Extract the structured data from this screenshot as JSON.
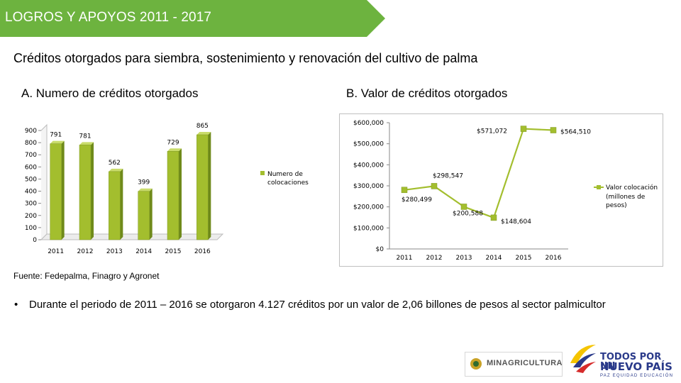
{
  "header": {
    "title": "LOGROS Y APOYOS 2011 - 2017",
    "color": "#6db33f"
  },
  "subtitle": "Créditos otorgados para siembra, sostenimiento y renovación del cultivo de palma",
  "source": "Fuente: Fedepalma, Finagro y Agronet",
  "bullet": {
    "marker": "•",
    "text": "Durante el periodo de 2011 – 2016 se otorgaron 4.127 créditos por un valor de  2,06 billones de pesos al sector palmicultor"
  },
  "logos": {
    "minagricultura": "MINAGRICULTURA",
    "todos_line1": "TODOS POR UN",
    "todos_line2": "NUEVO PAÍS",
    "todos_line3": "PAZ  EQUIDAD  EDUCACIÓN"
  },
  "chart_data": [
    {
      "type": "bar",
      "panel_title": "A. Numero de créditos otorgados",
      "categories": [
        "2011",
        "2012",
        "2013",
        "2014",
        "2015",
        "2016"
      ],
      "values": [
        791,
        781,
        562,
        399,
        729,
        865
      ],
      "value_labels": [
        "791",
        "781",
        "562",
        "399",
        "729",
        "865"
      ],
      "yticks": [
        "0",
        "100",
        "200",
        "300",
        "400",
        "500",
        "600",
        "700",
        "800",
        "900"
      ],
      "ylim": [
        0,
        900
      ],
      "legend": "Numero de colocaciones",
      "legend_placement": "right",
      "bar_color": "#a3be2e",
      "grid": false
    },
    {
      "type": "line",
      "panel_title": "B. Valor de créditos otorgados",
      "categories": [
        "2011",
        "2012",
        "2013",
        "2014",
        "2015",
        "2016"
      ],
      "values": [
        280499,
        298547,
        200588,
        148604,
        571072,
        564510
      ],
      "value_labels": [
        "$280,499",
        "$298,547",
        "$200,588",
        "$148,604",
        "$571,072",
        "$564,510"
      ],
      "yticks": [
        "$0",
        "$100,000",
        "$200,000",
        "$300,000",
        "$400,000",
        "$500,000",
        "$600,000"
      ],
      "ylim": [
        0,
        600000
      ],
      "legend": "Valor colocación (millones de pesos)",
      "legend_placement": "right",
      "line_color": "#a3be2e",
      "grid": false
    }
  ]
}
